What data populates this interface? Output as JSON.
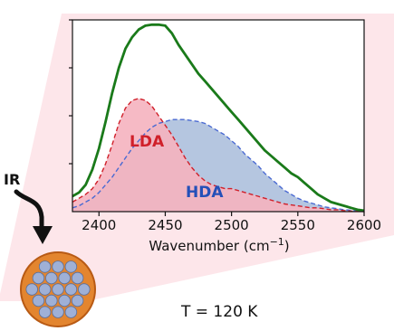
{
  "chart_data": {
    "type": "area",
    "xlabel": "Wavenumber (cm",
    "xlabel_sup": "−1",
    "xlabel_tail": ")",
    "ylabel": "",
    "xlim": [
      2380,
      2600
    ],
    "ylim": [
      0,
      1.0
    ],
    "x_ticks": [
      2400,
      2450,
      2500,
      2550,
      2600
    ],
    "y_tick_labels_shown": false,
    "grid": false,
    "series": [
      {
        "name": "",
        "color": "#1a7a1a",
        "style": "solid",
        "fill": false,
        "x": [
          2380,
          2385,
          2390,
          2395,
          2400,
          2405,
          2410,
          2415,
          2420,
          2425,
          2430,
          2435,
          2440,
          2445,
          2450,
          2455,
          2460,
          2465,
          2470,
          2475,
          2480,
          2485,
          2490,
          2495,
          2500,
          2505,
          2510,
          2515,
          2520,
          2525,
          2530,
          2535,
          2540,
          2545,
          2550,
          2555,
          2560,
          2565,
          2570,
          2575,
          2580,
          2585,
          2590,
          2595,
          2600
        ],
        "y": [
          0.08,
          0.1,
          0.14,
          0.22,
          0.33,
          0.47,
          0.62,
          0.75,
          0.85,
          0.91,
          0.95,
          0.97,
          0.975,
          0.975,
          0.97,
          0.93,
          0.87,
          0.82,
          0.77,
          0.72,
          0.68,
          0.64,
          0.6,
          0.56,
          0.52,
          0.48,
          0.44,
          0.4,
          0.36,
          0.32,
          0.29,
          0.26,
          0.23,
          0.2,
          0.18,
          0.15,
          0.12,
          0.09,
          0.07,
          0.05,
          0.04,
          0.03,
          0.02,
          0.01,
          0.005
        ]
      },
      {
        "name": "LDA",
        "color": "#d0202a",
        "fill_color": "#f5b2bf",
        "style": "dashed",
        "fill": true,
        "x": [
          2380,
          2385,
          2390,
          2395,
          2400,
          2405,
          2410,
          2415,
          2420,
          2425,
          2430,
          2435,
          2440,
          2445,
          2450,
          2455,
          2460,
          2465,
          2470,
          2475,
          2480,
          2485,
          2490,
          2495,
          2500,
          2505,
          2510,
          2515,
          2520,
          2525,
          2530,
          2535,
          2540,
          2545,
          2550,
          2555,
          2560,
          2565,
          2570,
          2575,
          2580,
          2585,
          2590,
          2595,
          2600
        ],
        "y": [
          0.05,
          0.07,
          0.09,
          0.12,
          0.17,
          0.25,
          0.35,
          0.46,
          0.54,
          0.58,
          0.59,
          0.58,
          0.55,
          0.5,
          0.45,
          0.4,
          0.34,
          0.28,
          0.23,
          0.19,
          0.16,
          0.14,
          0.13,
          0.12,
          0.12,
          0.11,
          0.1,
          0.09,
          0.08,
          0.07,
          0.06,
          0.05,
          0.04,
          0.035,
          0.03,
          0.025,
          0.02,
          0.02,
          0.015,
          0.01,
          0.01,
          0.005,
          0.003,
          0.002,
          0.0
        ]
      },
      {
        "name": "HDA",
        "color": "#4a6ad2",
        "fill_color": "#a8bcda",
        "style": "dashed",
        "fill": true,
        "x": [
          2380,
          2385,
          2390,
          2395,
          2400,
          2405,
          2410,
          2415,
          2420,
          2425,
          2430,
          2435,
          2440,
          2445,
          2450,
          2455,
          2460,
          2465,
          2470,
          2475,
          2480,
          2485,
          2490,
          2495,
          2500,
          2505,
          2510,
          2515,
          2520,
          2525,
          2530,
          2535,
          2540,
          2545,
          2550,
          2555,
          2560,
          2565,
          2570,
          2575,
          2580,
          2585,
          2590,
          2595,
          2600
        ],
        "y": [
          0.02,
          0.03,
          0.05,
          0.07,
          0.1,
          0.14,
          0.18,
          0.23,
          0.28,
          0.33,
          0.37,
          0.41,
          0.44,
          0.46,
          0.47,
          0.48,
          0.48,
          0.48,
          0.475,
          0.47,
          0.46,
          0.44,
          0.42,
          0.4,
          0.37,
          0.34,
          0.3,
          0.27,
          0.24,
          0.2,
          0.17,
          0.14,
          0.11,
          0.09,
          0.07,
          0.055,
          0.045,
          0.035,
          0.025,
          0.02,
          0.015,
          0.01,
          0.007,
          0.004,
          0.0
        ]
      }
    ],
    "annotations": {
      "lda_label": "LDA",
      "hda_label": "HDA",
      "ir_label": "IR",
      "temperature_label": "T = 120 K"
    }
  },
  "colors": {
    "background_wedge": "#fde6ea",
    "nanopore_fill": "#e3852f",
    "nanopore_rim": "#b85a14",
    "pore_fill": "#9fb0d6"
  }
}
